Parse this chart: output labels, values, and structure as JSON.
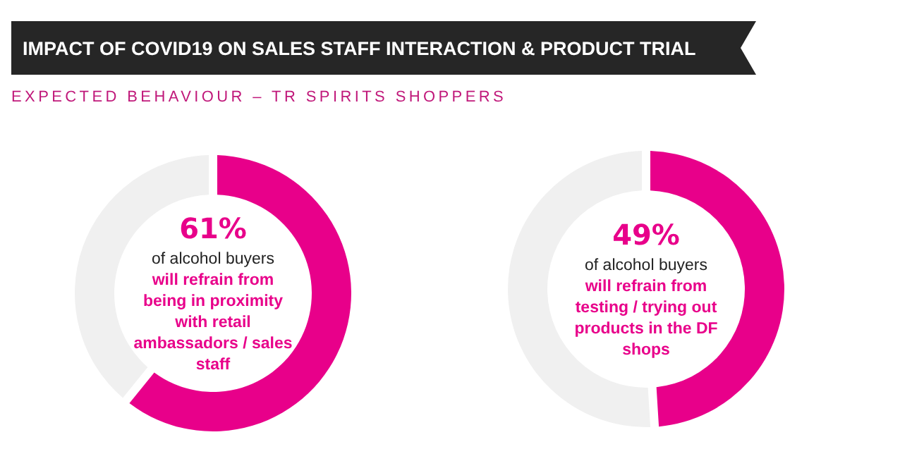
{
  "chart_data": [
    {
      "type": "donut",
      "title": "IMPACT OF COVID19 ON SALES STAFF INTERACTION & PRODUCT TRIAL",
      "subtitle": "EXPECTED BEHAVIOUR – TR SPIRITS SHOPPERS",
      "categories": [
        null,
        null
      ],
      "values": [
        61,
        39
      ],
      "colors": [
        "#e8008a",
        "#f0f0f0"
      ],
      "annotations": [
        "61%",
        "of alcohol buyers",
        "will refrain from being in proximity with retail ambassadors / sales staff"
      ]
    },
    {
      "type": "donut",
      "categories": [
        null,
        null
      ],
      "values": [
        49,
        51
      ],
      "colors": [
        "#e8008a",
        "#f0f0f0"
      ],
      "annotations": [
        "49%",
        "of alcohol buyers",
        "will refrain from testing / trying out products in the DF shops"
      ]
    }
  ]
}
